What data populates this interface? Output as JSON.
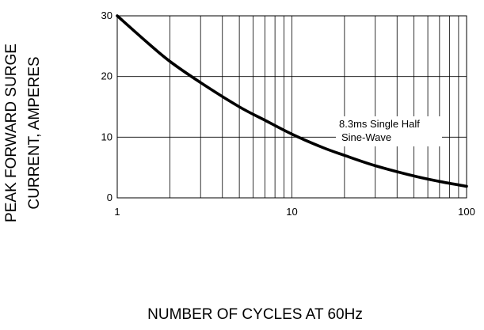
{
  "chart_data": {
    "type": "line",
    "title": "",
    "xlabel": "NUMBER OF CYCLES AT 60Hz",
    "ylabel": [
      "PEAK FORWARD SURGE",
      "CURRENT, AMPERES"
    ],
    "x_scale": "log",
    "xlim": [
      1,
      100
    ],
    "ylim": [
      0,
      30
    ],
    "x_ticks": [
      1,
      10,
      100
    ],
    "x_tick_labels": [
      "1",
      "10",
      "100"
    ],
    "y_ticks": [
      0,
      10,
      20,
      30
    ],
    "y_tick_labels": [
      "0",
      "10",
      "20",
      "30"
    ],
    "grid": true,
    "annotation": [
      "8.3ms Single Half",
      "Sine-Wave"
    ],
    "series": [
      {
        "x": [
          1,
          1.5,
          2,
          3,
          5,
          7,
          10,
          15,
          20,
          30,
          50,
          70,
          100
        ],
        "y": [
          30,
          25.5,
          22.5,
          19,
          15,
          12.8,
          10.5,
          8.3,
          7,
          5.3,
          3.6,
          2.7,
          1.9
        ]
      }
    ]
  }
}
